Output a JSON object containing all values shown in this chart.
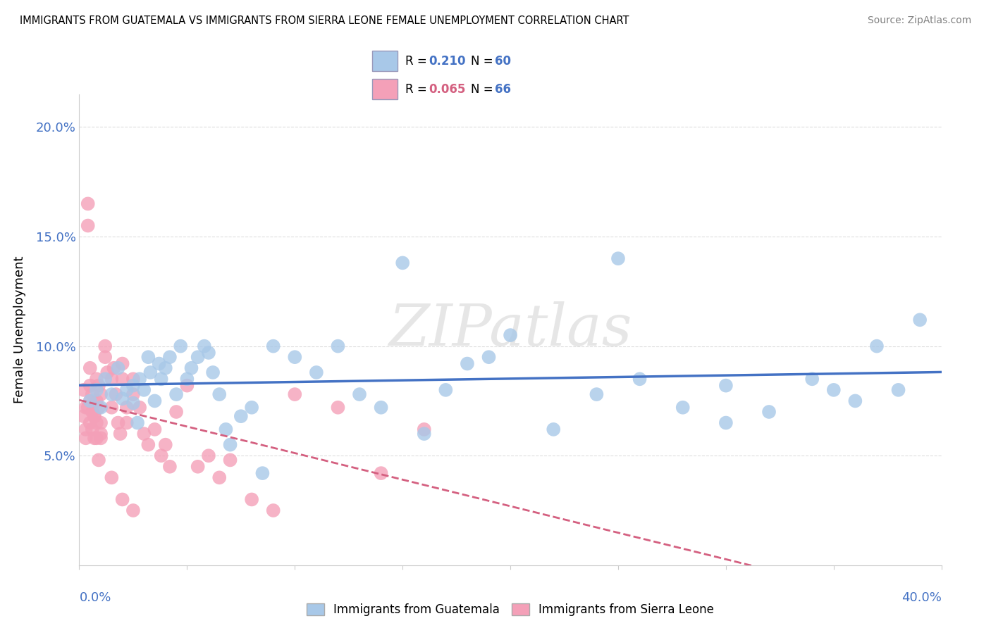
{
  "title": "IMMIGRANTS FROM GUATEMALA VS IMMIGRANTS FROM SIERRA LEONE FEMALE UNEMPLOYMENT CORRELATION CHART",
  "source": "Source: ZipAtlas.com",
  "ylabel": "Female Unemployment",
  "xlim": [
    0.0,
    0.4
  ],
  "ylim": [
    0.0,
    0.215
  ],
  "yticks": [
    0.0,
    0.05,
    0.1,
    0.15,
    0.2
  ],
  "ytick_labels": [
    "",
    "5.0%",
    "10.0%",
    "15.0%",
    "20.0%"
  ],
  "legend_r1": "0.210",
  "legend_n1": "60",
  "legend_r2": "0.065",
  "legend_n2": "66",
  "color_guatemala": "#a8c8e8",
  "color_sierra_leone": "#f4a0b8",
  "color_trend_guatemala": "#4472c4",
  "color_trend_sierra_leone": "#d46080",
  "watermark": "ZIPatlas",
  "guatemala_x": [
    0.005,
    0.008,
    0.01,
    0.012,
    0.015,
    0.018,
    0.02,
    0.022,
    0.025,
    0.025,
    0.027,
    0.028,
    0.03,
    0.032,
    0.033,
    0.035,
    0.037,
    0.038,
    0.04,
    0.042,
    0.045,
    0.047,
    0.05,
    0.052,
    0.055,
    0.058,
    0.06,
    0.062,
    0.065,
    0.068,
    0.07,
    0.075,
    0.08,
    0.085,
    0.09,
    0.1,
    0.11,
    0.12,
    0.13,
    0.14,
    0.15,
    0.16,
    0.17,
    0.18,
    0.19,
    0.2,
    0.22,
    0.24,
    0.25,
    0.26,
    0.28,
    0.3,
    0.32,
    0.34,
    0.35,
    0.36,
    0.37,
    0.38,
    0.39,
    0.3
  ],
  "guatemala_y": [
    0.075,
    0.08,
    0.072,
    0.085,
    0.078,
    0.09,
    0.076,
    0.08,
    0.082,
    0.074,
    0.065,
    0.085,
    0.08,
    0.095,
    0.088,
    0.075,
    0.092,
    0.085,
    0.09,
    0.095,
    0.078,
    0.1,
    0.085,
    0.09,
    0.095,
    0.1,
    0.097,
    0.088,
    0.078,
    0.062,
    0.055,
    0.068,
    0.072,
    0.042,
    0.1,
    0.095,
    0.088,
    0.1,
    0.078,
    0.072,
    0.138,
    0.06,
    0.08,
    0.092,
    0.095,
    0.105,
    0.062,
    0.078,
    0.14,
    0.085,
    0.072,
    0.082,
    0.07,
    0.085,
    0.08,
    0.075,
    0.1,
    0.08,
    0.112,
    0.065
  ],
  "sierra_leone_x": [
    0.002,
    0.003,
    0.003,
    0.004,
    0.004,
    0.005,
    0.005,
    0.005,
    0.006,
    0.006,
    0.007,
    0.007,
    0.008,
    0.008,
    0.008,
    0.009,
    0.009,
    0.01,
    0.01,
    0.01,
    0.012,
    0.012,
    0.013,
    0.015,
    0.015,
    0.016,
    0.017,
    0.018,
    0.019,
    0.02,
    0.02,
    0.022,
    0.022,
    0.025,
    0.025,
    0.028,
    0.03,
    0.032,
    0.035,
    0.038,
    0.04,
    0.042,
    0.045,
    0.05,
    0.055,
    0.06,
    0.065,
    0.07,
    0.08,
    0.09,
    0.1,
    0.12,
    0.14,
    0.16,
    0.002,
    0.003,
    0.004,
    0.005,
    0.006,
    0.007,
    0.008,
    0.009,
    0.01,
    0.015,
    0.02,
    0.025
  ],
  "sierra_leone_y": [
    0.08,
    0.062,
    0.072,
    0.155,
    0.165,
    0.09,
    0.075,
    0.065,
    0.07,
    0.062,
    0.068,
    0.058,
    0.085,
    0.075,
    0.065,
    0.082,
    0.072,
    0.078,
    0.065,
    0.06,
    0.1,
    0.095,
    0.088,
    0.085,
    0.072,
    0.09,
    0.078,
    0.065,
    0.06,
    0.092,
    0.085,
    0.072,
    0.065,
    0.085,
    0.078,
    0.072,
    0.06,
    0.055,
    0.062,
    0.05,
    0.055,
    0.045,
    0.07,
    0.082,
    0.045,
    0.05,
    0.04,
    0.048,
    0.03,
    0.025,
    0.078,
    0.072,
    0.042,
    0.062,
    0.068,
    0.058,
    0.072,
    0.082,
    0.078,
    0.068,
    0.058,
    0.048,
    0.058,
    0.04,
    0.03,
    0.025
  ]
}
